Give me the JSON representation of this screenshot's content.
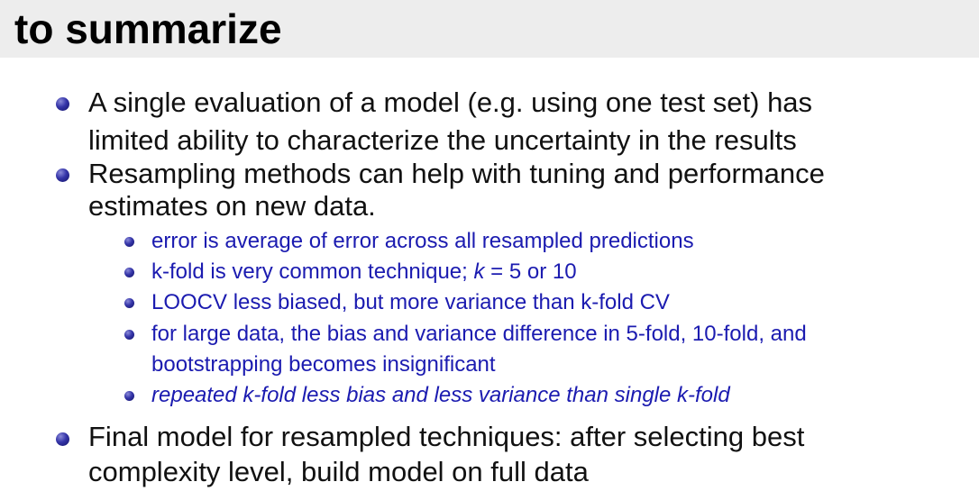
{
  "slide": {
    "title": "to summarize",
    "bullets": [
      {
        "lines": [
          "A single evaluation of a model (e.g. using one test set) has",
          "limited ability to characterize the uncertainty in the results"
        ]
      },
      {
        "lines": [
          "Resampling methods can help with tuning and performance",
          "estimates on new data."
        ],
        "subitems": [
          {
            "lines": [
              "error is average of error across all resampled predictions"
            ]
          },
          {
            "prefix": "k-fold is very common technique; ",
            "var": "k",
            "suffix": " = 5 or 10"
          },
          {
            "lines": [
              "LOOCV less biased, but more variance than k-fold CV"
            ]
          },
          {
            "lines": [
              "for large data, the bias and variance difference in 5-fold, 10-fold, and",
              "bootstrapping becomes insignificant"
            ]
          },
          {
            "lines": [
              "repeated k-fold less bias and less variance than single k-fold"
            ],
            "italic": true
          }
        ]
      },
      {
        "lines": [
          "Final model for resampled techniques: after selecting best",
          "complexity level, build model on full data"
        ]
      }
    ]
  },
  "colors": {
    "title_bar": "#ededed",
    "main_text": "#111111",
    "sub_text": "#1b1bb0",
    "bullet": "#2a2a9a"
  }
}
